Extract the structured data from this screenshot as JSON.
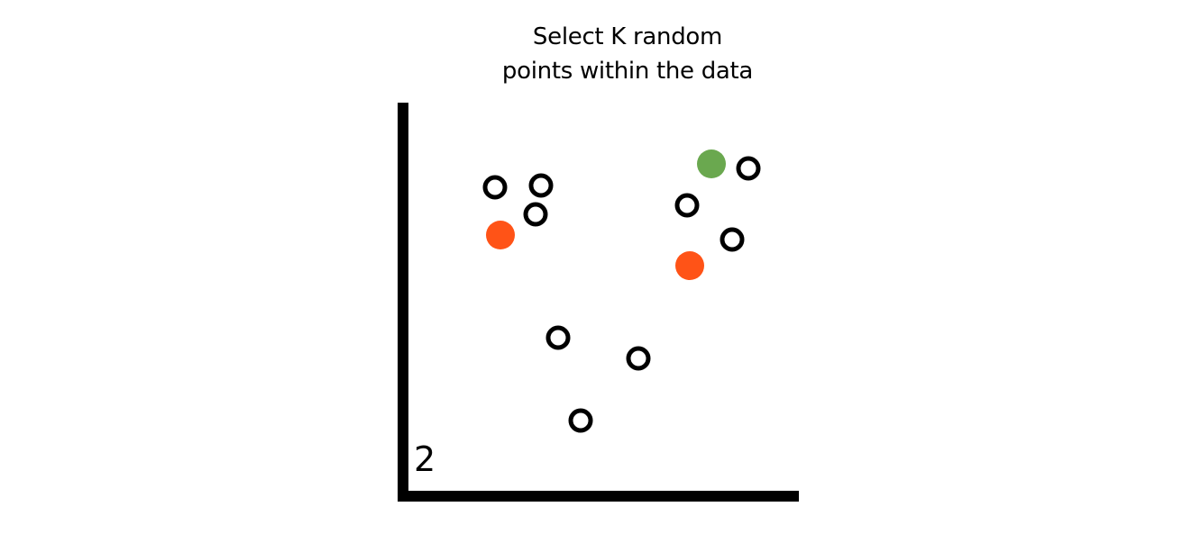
{
  "title": {
    "line1": "Select K random",
    "line2": "points within the data"
  },
  "step_number": "2",
  "colors": {
    "data_point_stroke": "#000000",
    "centroid_red": "#FF5317",
    "centroid_green": "#6AA84F",
    "axis": "#000000"
  },
  "legend": null
}
